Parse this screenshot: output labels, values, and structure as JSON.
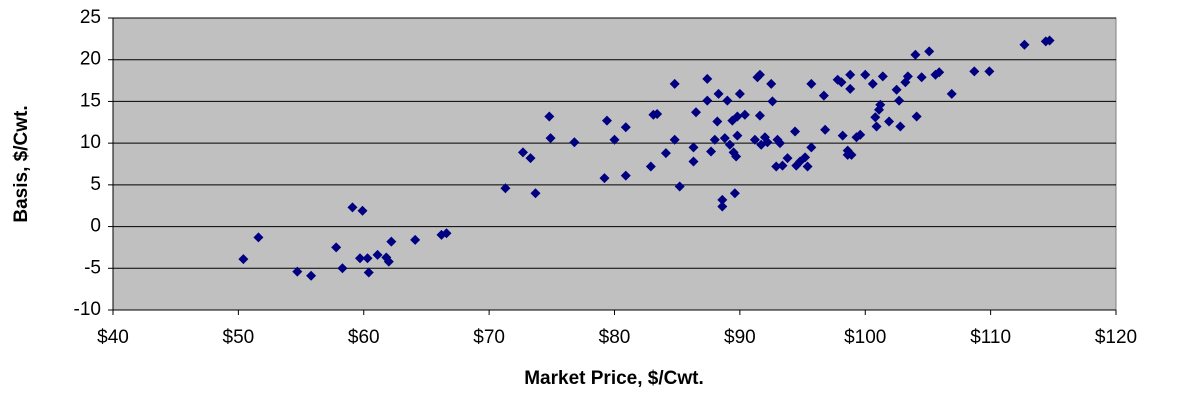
{
  "chart_data": {
    "type": "scatter",
    "x_label": "Market Price, $/Cwt.",
    "y_label": "Basis, $/Cwt.",
    "color": "#000080",
    "grid": true,
    "xlim": [
      40,
      120
    ],
    "ylim": [
      -10,
      25
    ],
    "xticks": [
      {
        "value": 40,
        "label": "$40"
      },
      {
        "value": 50,
        "label": "$50"
      },
      {
        "value": 60,
        "label": "$60"
      },
      {
        "value": 70,
        "label": "$70"
      },
      {
        "value": 80,
        "label": "$80"
      },
      {
        "value": 90,
        "label": "$90"
      },
      {
        "value": 100,
        "label": "$100"
      },
      {
        "value": 110,
        "label": "$110"
      },
      {
        "value": 120,
        "label": "$120"
      }
    ],
    "yticks": [
      -10,
      -5,
      0,
      5,
      10,
      15,
      20,
      25
    ],
    "x": [
      50.4,
      51.6,
      54.7,
      55.8,
      57.8,
      58.3,
      59.1,
      59.9,
      59.7,
      60.3,
      60.4,
      61.1,
      61.8,
      62.0,
      62.2,
      64.1,
      66.2,
      66.6,
      71.3,
      72.7,
      73.3,
      73.7,
      74.8,
      74.9,
      76.8,
      79.2,
      79.4,
      80.0,
      80.9,
      80.9,
      82.9,
      83.1,
      83.4,
      84.1,
      84.8,
      84.8,
      85.2,
      86.3,
      86.3,
      86.5,
      87.4,
      87.4,
      87.7,
      88.0,
      88.2,
      88.3,
      88.6,
      88.6,
      88.8,
      89.0,
      89.2,
      89.4,
      89.5,
      89.7,
      89.6,
      89.8,
      90.0,
      89.8,
      90.4,
      91.2,
      91.4,
      91.6,
      91.6,
      91.7,
      92.0,
      92.2,
      92.5,
      92.6,
      92.9,
      93.0,
      93.2,
      93.4,
      93.8,
      94.4,
      94.5,
      94.8,
      95.2,
      95.4,
      95.7,
      95.7,
      96.7,
      96.8,
      97.8,
      98.1,
      98.2,
      98.6,
      98.6,
      98.8,
      98.8,
      98.9,
      99.3,
      99.6,
      100.0,
      100.6,
      100.8,
      100.9,
      101.1,
      101.2,
      101.4,
      101.9,
      102.5,
      102.7,
      102.8,
      103.2,
      103.4,
      104.0,
      104.1,
      104.5,
      105.1,
      105.6,
      105.9,
      106.9,
      108.7,
      109.9,
      112.7,
      114.4,
      114.7
    ],
    "values": [
      -3.9,
      -1.3,
      -5.4,
      -5.9,
      -2.5,
      -5.0,
      2.3,
      1.9,
      -3.8,
      -3.8,
      -5.5,
      -3.4,
      -3.7,
      -4.2,
      -1.8,
      -1.6,
      -1.0,
      -0.8,
      4.6,
      8.9,
      8.2,
      4.0,
      13.2,
      10.6,
      10.1,
      5.8,
      12.7,
      10.4,
      11.9,
      6.1,
      7.2,
      13.4,
      13.5,
      8.8,
      17.1,
      10.4,
      4.8,
      9.5,
      7.8,
      13.7,
      17.7,
      15.1,
      9.0,
      10.4,
      12.6,
      15.9,
      3.2,
      2.4,
      10.6,
      15.1,
      9.8,
      12.7,
      8.9,
      8.4,
      4.0,
      13.2,
      15.9,
      10.9,
      13.4,
      10.4,
      17.9,
      18.2,
      13.3,
      9.8,
      10.7,
      10.1,
      17.1,
      15.0,
      7.2,
      10.4,
      10.0,
      7.3,
      8.2,
      11.4,
      7.3,
      7.8,
      8.3,
      7.2,
      9.5,
      17.1,
      15.7,
      11.6,
      17.6,
      17.3,
      10.9,
      9.1,
      8.6,
      18.2,
      16.5,
      8.6,
      10.7,
      11.0,
      18.2,
      17.1,
      13.1,
      12.0,
      14.0,
      14.6,
      18.0,
      12.6,
      16.4,
      15.1,
      12.0,
      17.3,
      18.0,
      20.6,
      13.2,
      17.9,
      21.0,
      18.2,
      18.5,
      15.9,
      18.6,
      18.6,
      21.8,
      22.2,
      22.3
    ]
  }
}
